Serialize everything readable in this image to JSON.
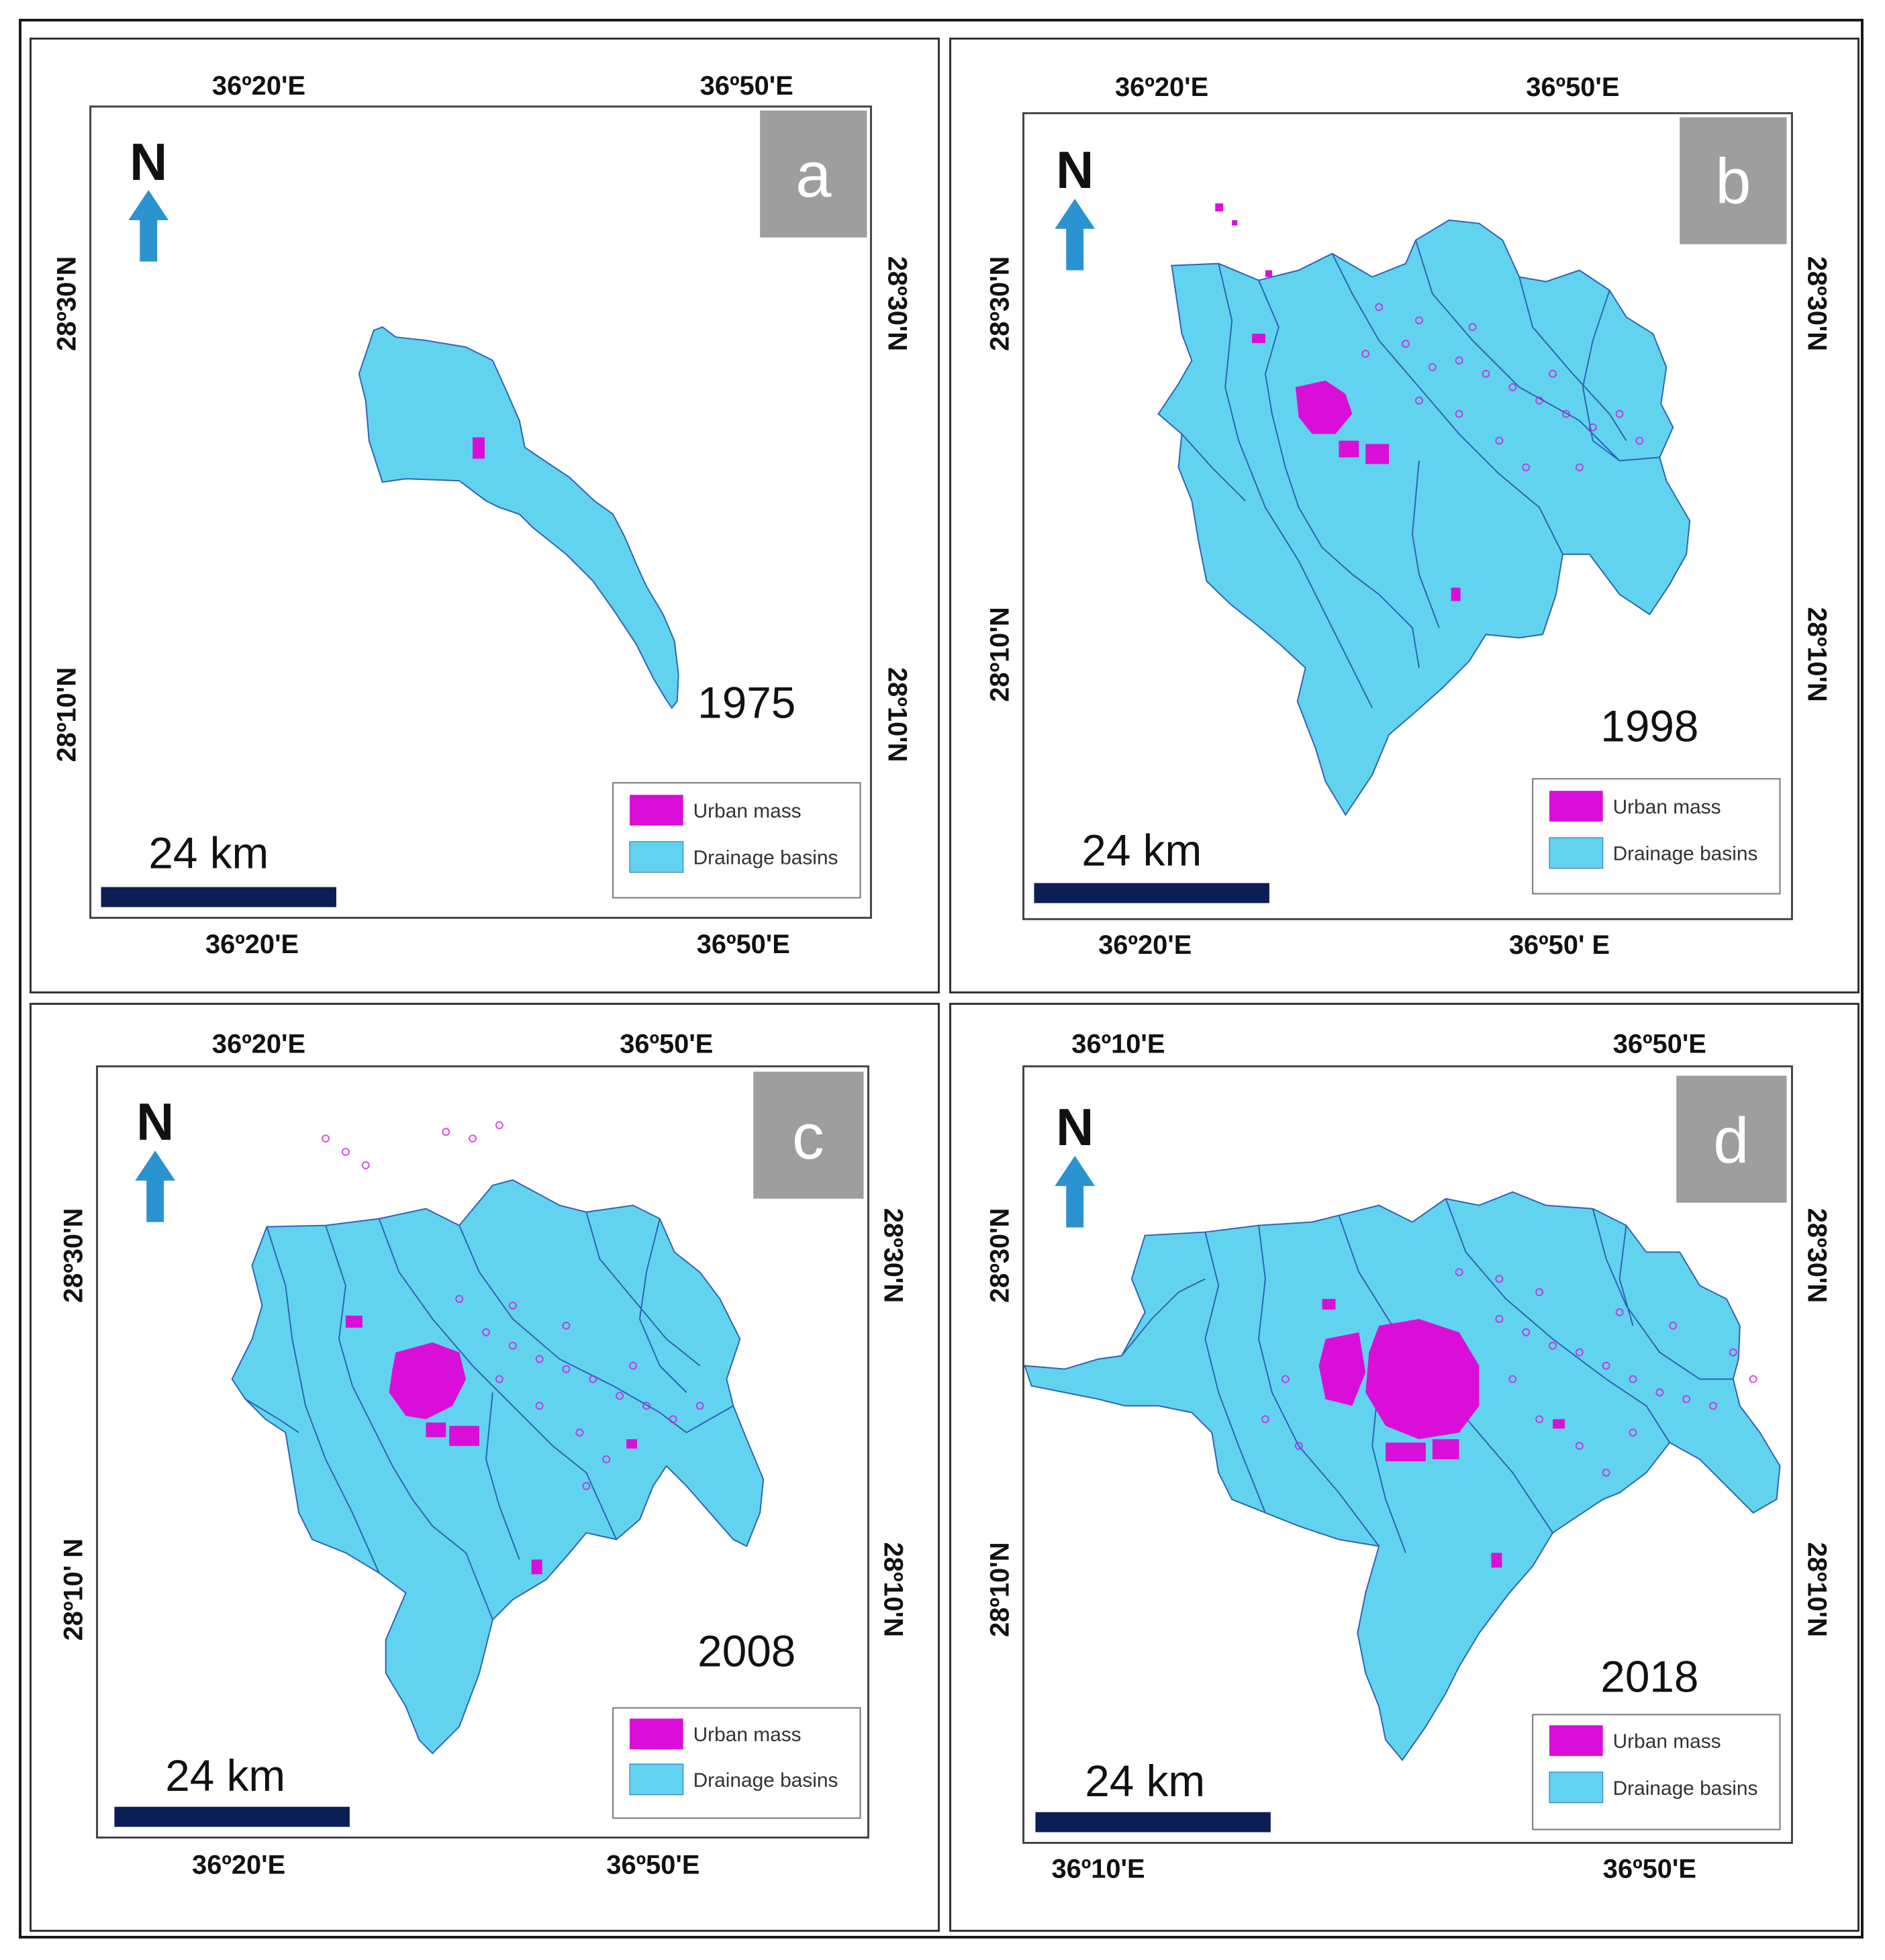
{
  "colors": {
    "basin_fill": "#62d3ee",
    "basin_stroke": "#2f63b8",
    "urban": "#d90fd9",
    "north_arrow": "#2a93d0",
    "scale_bar": "#0b1f56",
    "panel_label_bg": "#9e9e9e"
  },
  "panels": [
    {
      "label": "a",
      "year": "1975",
      "top_lons": [
        "36º20'E",
        "36º50'E"
      ],
      "bottom_lons": [
        "36º20'E",
        "36º50'E"
      ],
      "left_lats": [
        "28º30'N",
        "28º10'N"
      ],
      "right_lats": [
        "28º30'N",
        "28º10'N"
      ],
      "north": "N",
      "scale": "24 km",
      "legend": [
        "Urban mass",
        "Drainage basins"
      ]
    },
    {
      "label": "b",
      "year": "1998",
      "top_lons": [
        "36º20'E",
        "36º50'E"
      ],
      "bottom_lons": [
        "36º20'E",
        "36º50' E"
      ],
      "left_lats": [
        "28º30'N",
        "28º10'N"
      ],
      "right_lats": [
        "28º30'N",
        "28º10'N"
      ],
      "north": "N",
      "scale": "24 km",
      "legend": [
        "Urban mass",
        "Drainage basins"
      ]
    },
    {
      "label": "c",
      "year": "2008",
      "top_lons": [
        "36º20'E",
        "36º50'E"
      ],
      "bottom_lons": [
        "36º20'E",
        "36º50'E"
      ],
      "left_lats": [
        "28º30'N",
        "28º10' N"
      ],
      "right_lats": [
        "28º30'N",
        "28º10'N"
      ],
      "north": "N",
      "scale": "24 km",
      "legend": [
        "Urban mass",
        "Drainage basins"
      ]
    },
    {
      "label": "d",
      "year": "2018",
      "top_lons": [
        "36º10'E",
        "36º50'E"
      ],
      "bottom_lons": [
        "36º10'E",
        "36º50'E"
      ],
      "left_lats": [
        "28º30'N",
        "28º10'N"
      ],
      "right_lats": [
        "28º30'N",
        "28º10'N"
      ],
      "north": "N",
      "scale": "24 km",
      "legend": [
        "Urban mass",
        "Drainage basins"
      ]
    }
  ]
}
